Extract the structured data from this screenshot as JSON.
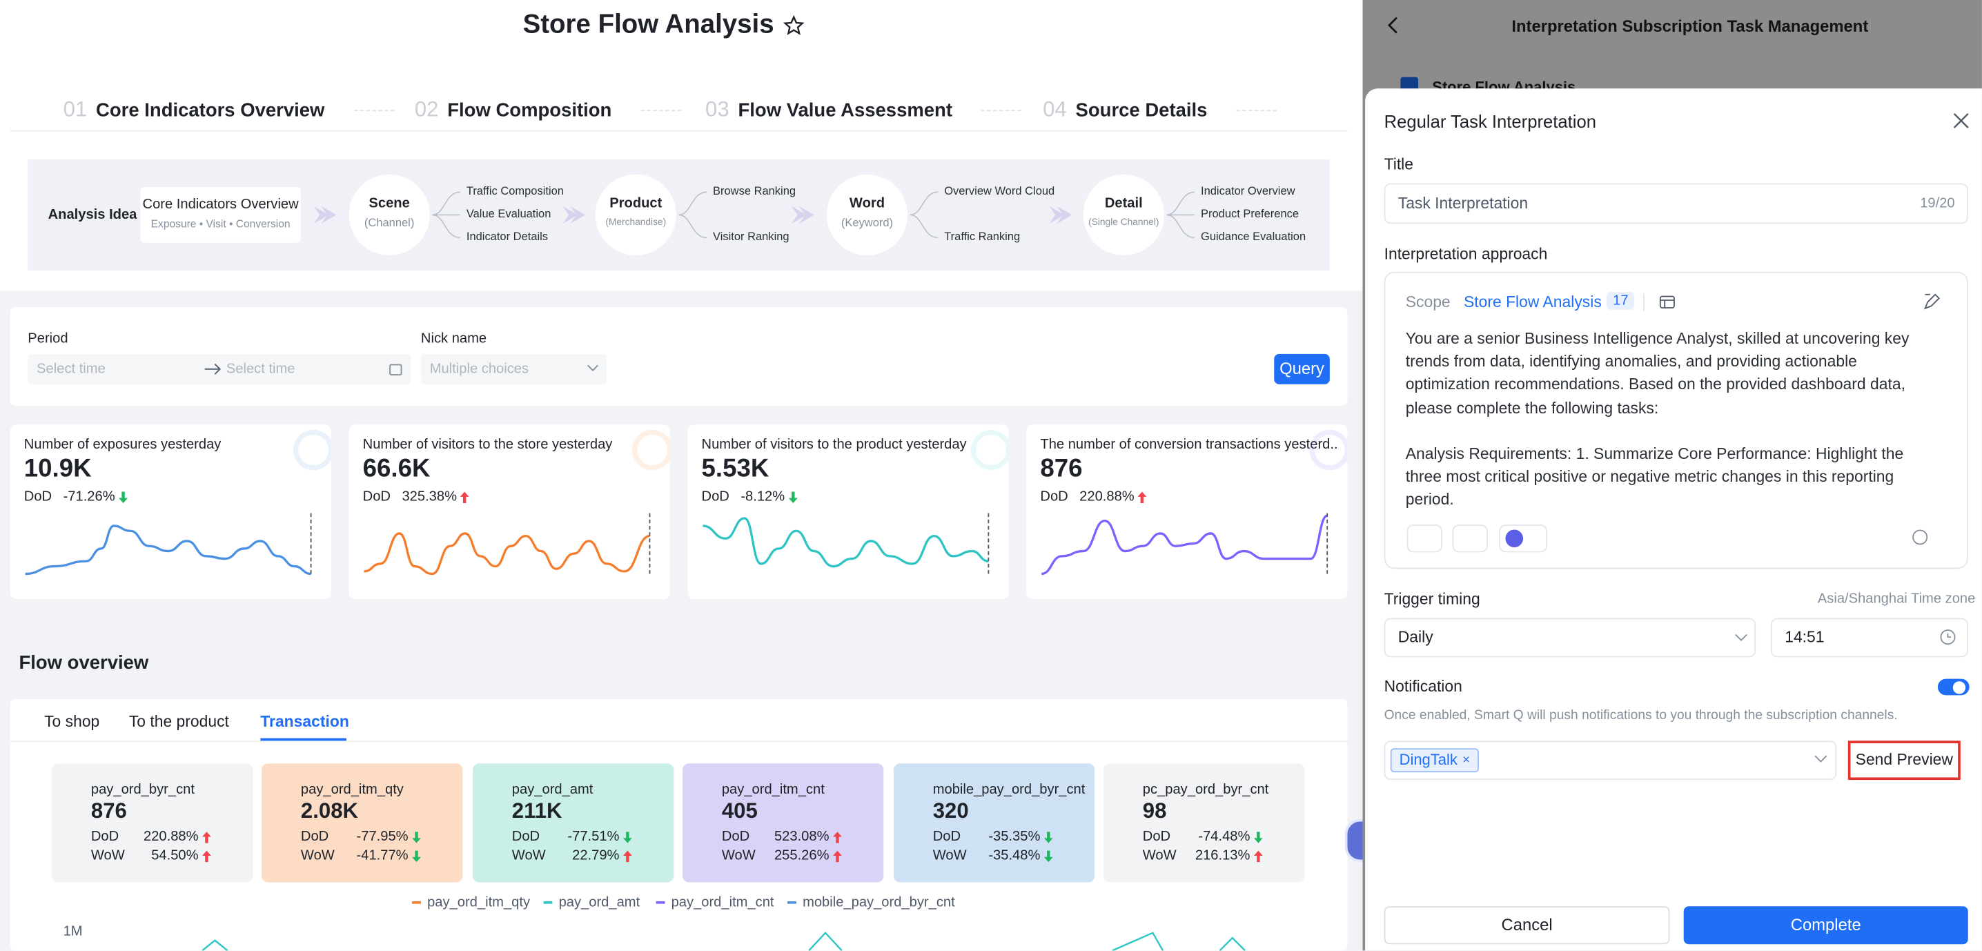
{
  "header": {
    "title": "Store Flow Analysis"
  },
  "steps": [
    {
      "number": "01",
      "label": "Core Indicators Overview"
    },
    {
      "number": "02",
      "label": "Flow Composition"
    },
    {
      "number": "03",
      "label": "Flow Value Assessment"
    },
    {
      "number": "04",
      "label": "Source Details"
    }
  ],
  "analysis": {
    "label": "Analysis Idea",
    "core": {
      "title": "Core Indicators Overview",
      "subtitle": "Exposure • Visit • Conversion"
    },
    "nodes": [
      {
        "title": "Scene",
        "subtitle": "(Channel)",
        "branches": [
          "Traffic Composition",
          "Value Evaluation",
          "Indicator Details"
        ]
      },
      {
        "title": "Product",
        "subtitle": "(Merchandise)",
        "branches": [
          "Browse Ranking",
          "Visitor Ranking"
        ]
      },
      {
        "title": "Word",
        "subtitle": "(Keyword)",
        "branches": [
          "Overview Word Cloud",
          "Traffic Ranking"
        ]
      },
      {
        "title": "Detail",
        "subtitle": "(Single Channel)",
        "branches": [
          "Indicator Overview",
          "Product Preference",
          "Guidance Evaluation"
        ]
      }
    ]
  },
  "filters": {
    "period": {
      "label": "Period",
      "start": "Select time",
      "end": "Select time"
    },
    "nick": {
      "label": "Nick name",
      "placeholder": "Multiple choices"
    },
    "query": "Query"
  },
  "kpis": [
    {
      "title": "Number of exposures yesterday",
      "value": "10.9K",
      "change_label": "DoD",
      "change": "-71.26%"
    },
    {
      "title": "Number of visitors to the store yesterday",
      "value": "66.6K",
      "change_label": "DoD",
      "change": "325.38%"
    },
    {
      "title": "Number of visitors to the product yesterday",
      "value": "5.53K",
      "change_label": "DoD",
      "change": "-8.12%"
    },
    {
      "title": "The number of conversion transactions yesterd...",
      "value": "876",
      "change_label": "DoD",
      "change": "220.88%"
    }
  ],
  "flow_overview": {
    "title": "Flow overview",
    "tabs": [
      "To shop",
      "To the product",
      "Transaction"
    ],
    "active_tab": 2,
    "dod_label": "DoD",
    "wow_label": "WoW",
    "metrics": [
      {
        "name": "pay_ord_byr_cnt",
        "value": "876",
        "dod": "220.88%",
        "wow": "54.50%",
        "color": "#f2f3f5"
      },
      {
        "name": "pay_ord_itm_qty",
        "value": "2.08K",
        "dod": "-77.95%",
        "wow": "-41.77%",
        "color": "#fddcc6"
      },
      {
        "name": "pay_ord_amt",
        "value": "211K",
        "dod": "-77.51%",
        "wow": "22.79%",
        "color": "#caefe9"
      },
      {
        "name": "pay_ord_itm_cnt",
        "value": "405",
        "dod": "523.08%",
        "wow": "255.26%",
        "color": "#d9d3f7"
      },
      {
        "name": "mobile_pay_ord_byr_cnt",
        "value": "320",
        "dod": "-35.35%",
        "wow": "-35.48%",
        "color": "#cfe1f4"
      },
      {
        "name": "pc_pay_ord_byr_cnt",
        "value": "98",
        "dod": "-74.48%",
        "wow": "216.13%",
        "color": "#f2f3f5"
      }
    ],
    "legend": [
      {
        "name": "pay_ord_itm_qty",
        "color": "#f57c2b"
      },
      {
        "name": "pay_ord_amt",
        "color": "#2ec4c4"
      },
      {
        "name": "pay_ord_itm_cnt",
        "color": "#7b61ff"
      },
      {
        "name": "mobile_pay_ord_byr_cnt",
        "color": "#4a90e2"
      }
    ],
    "axis_label": "1M"
  },
  "side_panel": {
    "title": "Interpretation Subscription Task Management",
    "item": "Store Flow Analysis"
  },
  "modal": {
    "title": "Regular Task Interpretation",
    "title_label": "Title",
    "title_value": "Task Interpretation",
    "title_count": "19/20",
    "approach_label": "Interpretation approach",
    "scope_label": "Scope",
    "scope_value": "Store Flow Analysis",
    "scope_count": "17",
    "prompt": [
      "You are a senior Business Intelligence Analyst, skilled at uncovering key trends from data, identifying anomalies, and providing actionable optimization recommendations. Based on the provided dashboard data, please complete the following tasks:",
      "Analysis Requirements:\n1. Summarize Core Performance: Highlight the three most critical positive or negative metric changes in this reporting period."
    ],
    "trigger_label": "Trigger timing",
    "timezone": "Asia/Shanghai Time zone",
    "frequency": "Daily",
    "time": "14:51",
    "notification_label": "Notification",
    "notification_on": true,
    "notification_desc": "Once enabled, Smart Q will push notifications to you through the subscription channels.",
    "channel": "DingTalk",
    "send_preview": "Send Preview",
    "cancel": "Cancel",
    "complete": "Complete"
  }
}
